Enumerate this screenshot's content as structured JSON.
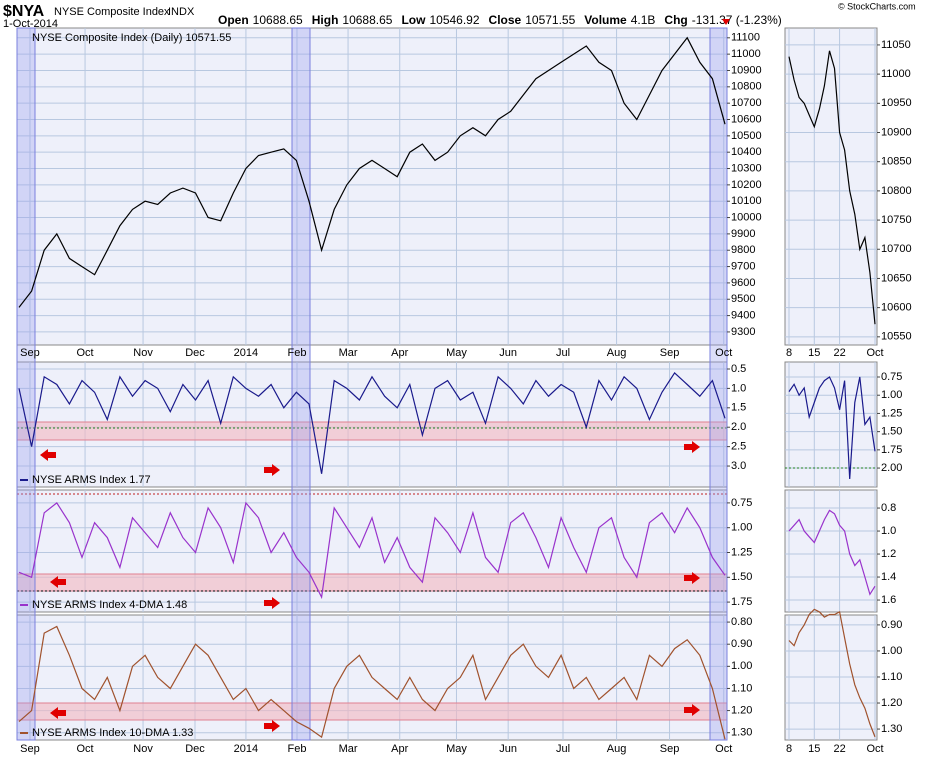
{
  "header": {
    "symbol": "$NYA",
    "name": "NYSE Composite Index",
    "exchange": "INDX",
    "date": "1-Oct-2014",
    "quote": [
      {
        "label": "Open",
        "value": "10688.65"
      },
      {
        "label": "High",
        "value": "10688.65"
      },
      {
        "label": "Low",
        "value": "10546.92"
      },
      {
        "label": "Close",
        "value": "10571.55"
      },
      {
        "label": "Volume",
        "value": "4.1B"
      },
      {
        "label": "Chg",
        "value": "-131.37 (-1.23%)"
      }
    ],
    "credit": "© StockCharts.com"
  },
  "chart_data": [
    {
      "type": "line",
      "label": "NYSE Composite Index (Daily) 10571.55",
      "color": "#000000",
      "values": [
        9450,
        9550,
        9800,
        9900,
        9750,
        9700,
        9650,
        9800,
        9950,
        10050,
        10100,
        10080,
        10150,
        10180,
        10150,
        10000,
        9980,
        10150,
        10300,
        10380,
        10400,
        10420,
        10350,
        10100,
        9800,
        10050,
        10200,
        10300,
        10350,
        10300,
        10250,
        10400,
        10450,
        10350,
        10400,
        10500,
        10550,
        10500,
        10600,
        10650,
        10750,
        10850,
        10900,
        10950,
        11000,
        11050,
        10950,
        10900,
        10700,
        10600,
        10750,
        10900,
        11000,
        11100,
        10950,
        10850,
        10571.55
      ],
      "xlim": [
        0,
        56
      ],
      "ylim": [
        9220,
        11160
      ],
      "xticks": [
        {
          "value": 0.87,
          "label": "Sep"
        },
        {
          "value": 5.24,
          "label": "Oct"
        },
        {
          "value": 9.84,
          "label": "Nov"
        },
        {
          "value": 13.96,
          "label": "Dec"
        },
        {
          "value": 18.0,
          "label": "2014"
        },
        {
          "value": 22.05,
          "label": "Feb"
        },
        {
          "value": 26.1,
          "label": "Mar"
        },
        {
          "value": 30.2,
          "label": "Apr"
        },
        {
          "value": 34.7,
          "label": "May"
        },
        {
          "value": 38.8,
          "label": "Jun"
        },
        {
          "value": 43.15,
          "label": "Jul"
        },
        {
          "value": 47.4,
          "label": "Aug"
        },
        {
          "value": 51.6,
          "label": "Sep"
        },
        {
          "value": 55.9,
          "label": "Oct"
        }
      ],
      "yticks": [
        9300,
        9400,
        9500,
        9600,
        9700,
        9800,
        9900,
        10000,
        10100,
        10200,
        10300,
        10400,
        10500,
        10600,
        10700,
        10800,
        10900,
        11000,
        11100
      ],
      "grid": true
    },
    {
      "type": "line",
      "label": "NYSE ARMS Index 1.77",
      "color": "#1a1a8c",
      "values": [
        1.0,
        2.5,
        0.7,
        0.9,
        1.4,
        0.8,
        1.1,
        1.8,
        0.7,
        1.2,
        0.8,
        1.0,
        1.6,
        0.9,
        1.3,
        0.8,
        1.9,
        0.7,
        1.0,
        1.2,
        0.9,
        1.5,
        1.1,
        1.4,
        3.2,
        0.8,
        1.0,
        1.3,
        0.7,
        1.2,
        1.5,
        0.9,
        2.2,
        1.0,
        0.8,
        1.3,
        1.1,
        1.9,
        0.7,
        1.0,
        1.4,
        0.8,
        1.2,
        0.9,
        1.1,
        2.0,
        0.8,
        1.3,
        0.7,
        1.0,
        1.8,
        1.1,
        0.6,
        0.9,
        1.2,
        0.8,
        1.77
      ],
      "xlim": [
        0,
        56
      ],
      "ylim": [
        3.54,
        0.32
      ],
      "yticks": [
        0.5,
        {
          "value": 1,
          "label": "1.0"
        },
        1.5,
        {
          "value": 2,
          "label": "2.0"
        },
        2.5,
        {
          "value": 3,
          "label": "3.0"
        }
      ],
      "grid": true
    },
    {
      "type": "line",
      "label": "NYSE ARMS Index 4-DMA 1.48",
      "color": "#9933cc",
      "values": [
        1.45,
        1.5,
        0.85,
        0.75,
        0.95,
        1.3,
        0.95,
        1.1,
        1.4,
        0.9,
        1.05,
        1.2,
        0.85,
        1.1,
        1.25,
        0.8,
        1.0,
        1.35,
        0.75,
        0.9,
        1.25,
        1.05,
        1.3,
        1.45,
        1.7,
        0.8,
        1.0,
        1.2,
        0.9,
        1.35,
        1.1,
        1.4,
        1.55,
        0.9,
        1.05,
        1.25,
        0.85,
        1.3,
        1.45,
        0.95,
        0.85,
        1.1,
        1.4,
        0.9,
        1.2,
        1.45,
        1.0,
        0.9,
        1.3,
        1.5,
        0.95,
        0.85,
        1.05,
        0.8,
        1.0,
        1.3,
        1.48
      ],
      "xlim": [
        0,
        56
      ],
      "ylim": [
        1.85,
        0.62
      ],
      "yticks": [
        0.75,
        {
          "value": 1,
          "label": "1.00"
        },
        1.25,
        {
          "value": 1.5,
          "label": "1.50"
        },
        1.75
      ],
      "grid": true
    },
    {
      "type": "line",
      "label": "NYSE ARMS Index 10-DMA 1.33",
      "color": "#a0522d",
      "values": [
        1.25,
        1.2,
        0.85,
        0.82,
        0.95,
        1.1,
        1.15,
        1.05,
        1.2,
        1.0,
        0.95,
        1.05,
        1.1,
        1.0,
        0.9,
        0.95,
        1.05,
        1.15,
        1.1,
        1.2,
        1.15,
        1.2,
        1.25,
        1.28,
        1.32,
        1.1,
        1.0,
        0.95,
        1.05,
        1.1,
        1.15,
        1.05,
        1.15,
        1.2,
        1.1,
        1.05,
        0.95,
        1.15,
        1.05,
        0.95,
        0.9,
        1.0,
        1.05,
        0.95,
        1.1,
        1.05,
        1.15,
        1.1,
        1.05,
        1.15,
        0.95,
        1.0,
        0.92,
        0.88,
        0.95,
        1.1,
        1.33
      ],
      "xlim": [
        0,
        56
      ],
      "ylim": [
        1.333,
        0.768
      ],
      "yticks": [
        {
          "value": 0.8,
          "label": "0.80"
        },
        {
          "value": 0.9,
          "label": "0.90"
        },
        {
          "value": 1,
          "label": "1.00"
        },
        {
          "value": 1.1,
          "label": "1.10"
        },
        {
          "value": 1.2,
          "label": "1.20"
        },
        {
          "value": 1.3,
          "label": "1.30"
        }
      ],
      "grid": true
    },
    {
      "type": "line",
      "color": "#000000",
      "values": [
        11030,
        10990,
        10960,
        10950,
        10930,
        10910,
        10940,
        10980,
        11040,
        11010,
        10900,
        10870,
        10800,
        10760,
        10700,
        10720,
        10660,
        10571.55
      ],
      "xlim": [
        0,
        17
      ],
      "ylim": [
        10536,
        11079
      ],
      "xticks": [
        {
          "value": 0,
          "label": "8"
        },
        {
          "value": 5,
          "label": "15"
        },
        {
          "value": 10,
          "label": "22"
        },
        {
          "value": 17,
          "label": "Oct"
        }
      ],
      "yticks": [
        10550,
        10600,
        10650,
        10700,
        10750,
        10800,
        10850,
        10900,
        10950,
        11000,
        11050
      ],
      "grid": true
    },
    {
      "type": "line",
      "color": "#1a1a8c",
      "values": [
        0.95,
        0.85,
        1.0,
        0.9,
        1.3,
        1.1,
        0.9,
        0.8,
        0.75,
        0.9,
        1.2,
        0.8,
        2.15,
        1.1,
        0.75,
        1.4,
        1.3,
        1.77
      ],
      "xlim": [
        0,
        17
      ],
      "ylim": [
        2.26,
        0.544
      ],
      "yticks": [
        0.75,
        {
          "value": 1,
          "label": "1.00"
        },
        1.25,
        {
          "value": 1.5,
          "label": "1.50"
        },
        1.75,
        {
          "value": 2,
          "label": "2.00"
        }
      ],
      "grid": true
    },
    {
      "type": "line",
      "color": "#9933cc",
      "values": [
        1.0,
        0.95,
        0.9,
        1.0,
        1.05,
        1.1,
        1.0,
        0.9,
        0.82,
        0.85,
        0.95,
        1.0,
        1.2,
        1.3,
        1.25,
        1.4,
        1.55,
        1.48
      ],
      "xlim": [
        0,
        17
      ],
      "ylim": [
        1.704,
        0.643
      ],
      "yticks": [
        0.8,
        {
          "value": 1,
          "label": "1.0"
        },
        1.2,
        1.4,
        1.6
      ],
      "grid": true
    },
    {
      "type": "line",
      "color": "#a0522d",
      "values": [
        0.96,
        0.98,
        0.93,
        0.9,
        0.86,
        0.84,
        0.85,
        0.87,
        0.86,
        0.86,
        0.85,
        0.95,
        1.05,
        1.13,
        1.18,
        1.22,
        1.28,
        1.33
      ],
      "xlim": [
        0,
        17
      ],
      "ylim": [
        1.342,
        0.862
      ],
      "yticks": [
        {
          "value": 0.9,
          "label": "0.90"
        },
        {
          "value": 1,
          "label": "1.00"
        },
        {
          "value": 1.1,
          "label": "1.10"
        },
        {
          "value": 1.2,
          "label": "1.20"
        },
        {
          "value": 1.3,
          "label": "1.30"
        }
      ],
      "grid": true
    }
  ]
}
